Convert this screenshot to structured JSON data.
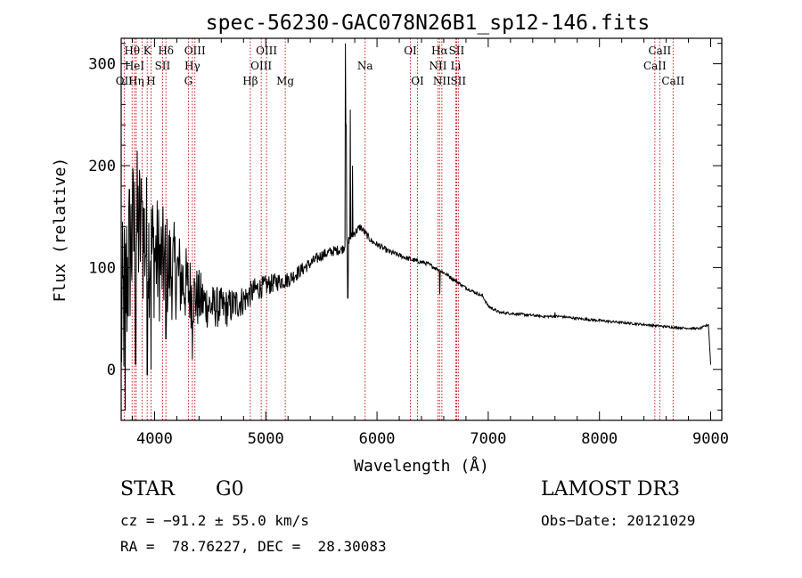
{
  "chart_data": {
    "type": "line",
    "title": "spec-56230-GAC078N26B1_sp12-146.fits",
    "xlabel": "Wavelength (Å)",
    "ylabel": "Flux (relative)",
    "xlim": [
      3700,
      9100
    ],
    "ylim": [
      -50,
      325
    ],
    "xticks": [
      4000,
      5000,
      6000,
      7000,
      8000,
      9000
    ],
    "yticks": [
      0,
      100,
      200,
      300
    ],
    "series": [
      {
        "name": "flux",
        "anchors": [
          [
            3700,
            40
          ],
          [
            3780,
            120
          ],
          [
            3850,
            140
          ],
          [
            3950,
            120
          ],
          [
            4050,
            105
          ],
          [
            4200,
            95
          ],
          [
            4350,
            72
          ],
          [
            4500,
            62
          ],
          [
            4650,
            60
          ],
          [
            4800,
            68
          ],
          [
            4900,
            78
          ],
          [
            5000,
            82
          ],
          [
            5100,
            86
          ],
          [
            5200,
            88
          ],
          [
            5300,
            96
          ],
          [
            5400,
            104
          ],
          [
            5500,
            112
          ],
          [
            5600,
            116
          ],
          [
            5690,
            118
          ],
          [
            5780,
            132
          ],
          [
            5850,
            140
          ],
          [
            5950,
            126
          ],
          [
            6100,
            116
          ],
          [
            6300,
            108
          ],
          [
            6450,
            104
          ],
          [
            6600,
            95
          ],
          [
            6800,
            80
          ],
          [
            6950,
            72
          ],
          [
            7000,
            62
          ],
          [
            7100,
            56
          ],
          [
            7300,
            54
          ],
          [
            7500,
            52
          ],
          [
            7650,
            52
          ],
          [
            7800,
            50
          ],
          [
            8000,
            48
          ],
          [
            8200,
            46
          ],
          [
            8500,
            43
          ],
          [
            8700,
            41
          ],
          [
            8900,
            40
          ],
          [
            8980,
            44
          ],
          [
            9000,
            5
          ]
        ],
        "noise": [
          [
            3700,
            95
          ],
          [
            3900,
            75
          ],
          [
            4100,
            55
          ],
          [
            4300,
            38
          ],
          [
            4500,
            22
          ],
          [
            4700,
            18
          ],
          [
            4900,
            12
          ],
          [
            5100,
            9
          ],
          [
            5400,
            6
          ],
          [
            5650,
            5
          ],
          [
            6000,
            3
          ],
          [
            6500,
            2
          ],
          [
            7000,
            1.4
          ],
          [
            9000,
            1
          ]
        ],
        "features": [
          {
            "x": 3735,
            "y": -40
          },
          {
            "x": 3800,
            "y": 160
          },
          {
            "x": 3830,
            "y": 5
          },
          {
            "x": 3890,
            "y": 165
          },
          {
            "x": 3934,
            "y": -5
          },
          {
            "x": 3968,
            "y": 0
          },
          {
            "x": 4102,
            "y": 30
          },
          {
            "x": 4340,
            "y": 10
          },
          {
            "x": 5715,
            "y": 320
          },
          {
            "x": 5722,
            "y": 240
          },
          {
            "x": 5738,
            "y": 70
          },
          {
            "x": 5760,
            "y": 255
          },
          {
            "x": 5780,
            "y": 200
          },
          {
            "x": 6563,
            "y": 74
          },
          {
            "x": 7600,
            "y": 56
          }
        ]
      }
    ],
    "lines": [
      {
        "x": 3727,
        "label": "OII",
        "row": 2
      },
      {
        "x": 3798,
        "label": "Hθ",
        "row": 0
      },
      {
        "x": 3820,
        "label": "HeI",
        "row": 1
      },
      {
        "x": 3835,
        "label": "Hη",
        "row": 2
      },
      {
        "x": 3889,
        "label": "",
        "row": 0
      },
      {
        "x": 3934,
        "label": "K",
        "row": 0
      },
      {
        "x": 3968,
        "label": "H",
        "row": 2
      },
      {
        "x": 4072,
        "label": "SII",
        "row": 1
      },
      {
        "x": 4102,
        "label": "Hδ",
        "row": 0
      },
      {
        "x": 4304,
        "label": "G",
        "row": 2
      },
      {
        "x": 4340,
        "label": "Hγ",
        "row": 1
      },
      {
        "x": 4363,
        "label": "OIII",
        "row": 0
      },
      {
        "x": 4861,
        "label": "Hβ",
        "row": 2
      },
      {
        "x": 4959,
        "label": "OIII",
        "row": 1
      },
      {
        "x": 5007,
        "label": "OIII",
        "row": 0
      },
      {
        "x": 5175,
        "label": "Mg",
        "row": 2
      },
      {
        "x": 5893,
        "label": "Na",
        "row": 1
      },
      {
        "x": 6300,
        "label": "OI",
        "row": 0
      },
      {
        "x": 6364,
        "label": "OI",
        "row": 2
      },
      {
        "x": 6548,
        "label": "NII",
        "row": 1
      },
      {
        "x": 6563,
        "label": "Hα",
        "row": 0
      },
      {
        "x": 6583,
        "label": "NII",
        "row": 2
      },
      {
        "x": 6708,
        "label": "Li",
        "row": 1
      },
      {
        "x": 6716,
        "label": "SII",
        "row": 0
      },
      {
        "x": 6731,
        "label": "SII",
        "row": 2
      },
      {
        "x": 8498,
        "label": "CaII",
        "row": 1
      },
      {
        "x": 8542,
        "label": "CaII",
        "row": 0
      },
      {
        "x": 8662,
        "label": "CaII",
        "row": 2
      }
    ]
  },
  "info": {
    "class": "STAR",
    "subclass": "G0",
    "survey": "LAMOST DR3",
    "cz": "cz = −91.2 ± 55.0 km/s",
    "obs_date": "Obs−Date: 20121029",
    "coords": "RA =  78.76227, DEC =  28.30083"
  },
  "colors": {
    "spectrum": "#000000",
    "line_marker": "#cc0000"
  }
}
